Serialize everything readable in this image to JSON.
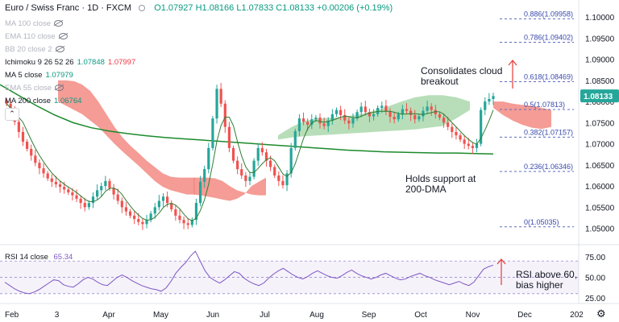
{
  "header": {
    "title": "Euro / Swiss Franc · 1D · FXCM",
    "ohlc": "O1.07927 H1.08166 L1.07833 C1.08133 +0.00206 (+0.19%)"
  },
  "indicators": [
    {
      "label": "MA 100 close",
      "value": "",
      "value2": "",
      "hidden": true
    },
    {
      "label": "EMA 110 close",
      "value": "",
      "value2": "",
      "hidden": true
    },
    {
      "label": "BB 20 close 2",
      "value": "",
      "value2": "",
      "hidden": true
    },
    {
      "label": "Ichimoku 9 26 52 26",
      "value": "1.07848",
      "value2": "1.07997",
      "hidden": false
    },
    {
      "label": "MA 5 close",
      "value": "1.07979",
      "value2": "",
      "hidden": false
    },
    {
      "label": "EMA 55 close",
      "value": "",
      "value2": "",
      "hidden": true
    },
    {
      "label": "MA 200 close",
      "value": "1.06764",
      "value2": "",
      "hidden": false
    }
  ],
  "collapse_icon": "chevron-up-icon",
  "annotations": {
    "cloud": [
      "Consolidates cloud",
      "breakout"
    ],
    "support": [
      "Holds support at",
      "200-DMA"
    ],
    "rsi": [
      "RSI above 60,",
      "bias higher"
    ]
  },
  "rsi": {
    "label": "RSI 14 close",
    "value": "65.34"
  },
  "colors": {
    "up": "#26a69a",
    "down": "#ef5350",
    "cloud_bear": "#f28b82",
    "cloud_bull": "#a5d6a7",
    "ma200": "#1b8a2b",
    "ma5": "#2e7d32",
    "rsi": "#7e57c2",
    "arrow": "#e53935"
  },
  "chart_data": {
    "type": "candlestick",
    "price_axis": {
      "ticks": [
        "1.10000",
        "1.09500",
        "1.09000",
        "1.08500",
        "1.08000",
        "1.07500",
        "1.07000",
        "1.06500",
        "1.06000",
        "1.05500",
        "1.05000"
      ],
      "range": [
        1.0465,
        1.1025
      ]
    },
    "last_price": "1.08133",
    "time_axis": [
      "Feb",
      "3",
      "Apr",
      "May",
      "Jun",
      "Jul",
      "Aug",
      "Sep",
      "Oct",
      "Nov",
      "Dec",
      "202"
    ],
    "fibonacci": [
      {
        "label": "0.886(1.09958)",
        "price": 1.09958
      },
      {
        "label": "0.786(1.09402)",
        "price": 1.09402
      },
      {
        "label": "0.618(1.08469)",
        "price": 1.08469
      },
      {
        "label": "0.5(1.07813)",
        "price": 1.07813
      },
      {
        "label": "0.382(1.07157)",
        "price": 1.07157
      },
      {
        "label": "0.236(1.06346)",
        "price": 1.06346
      },
      {
        "label": "0(1.05035)",
        "price": 1.05035
      }
    ],
    "close_series": [
      1.0795,
      1.0775,
      1.0752,
      1.0728,
      1.0705,
      1.0688,
      1.0672,
      1.0655,
      1.0642,
      1.063,
      1.0618,
      1.061,
      1.0604,
      1.0598,
      1.0592,
      1.0585,
      1.0578,
      1.057,
      1.056,
      1.055,
      1.056,
      1.0575,
      1.059,
      1.06,
      1.0612,
      1.0595,
      1.058,
      1.0565,
      1.055,
      1.054,
      1.053,
      1.0522,
      1.0515,
      1.051,
      1.052,
      1.0535,
      1.055,
      1.0565,
      1.0575,
      1.056,
      1.0545,
      1.053,
      1.052,
      1.0512,
      1.0508,
      1.052,
      1.056,
      1.061,
      1.064,
      1.069,
      1.076,
      1.083,
      1.0795,
      1.074,
      1.069,
      1.066,
      1.064,
      1.0625,
      1.0612,
      1.0622,
      1.066,
      1.069,
      1.068,
      1.066,
      1.0645,
      1.0625,
      1.0612,
      1.0602,
      1.063,
      1.069,
      1.073,
      1.076,
      1.0752,
      1.0745,
      1.0758,
      1.0762,
      1.0748,
      1.0742,
      1.0755,
      1.077,
      1.078,
      1.0768,
      1.0755,
      1.0748,
      1.076,
      1.0775,
      1.0788,
      1.0775,
      1.0765,
      1.077,
      1.0785,
      1.079,
      1.0776,
      1.0764,
      1.0758,
      1.077,
      1.0782,
      1.0778,
      1.0768,
      1.0758,
      1.0765,
      1.0778,
      1.0788,
      1.078,
      1.077,
      1.0762,
      1.075,
      1.074,
      1.0728,
      1.072,
      1.071,
      1.07,
      1.0695,
      1.069,
      1.07,
      1.078,
      1.08,
      1.0806,
      1.0813
    ],
    "ma200_series": [
      1.084,
      1.0815,
      1.079,
      1.0768,
      1.075,
      1.0738,
      1.073,
      1.0724,
      1.0719,
      1.0715,
      1.0712,
      1.0709,
      1.0706,
      1.0703,
      1.07,
      1.0697,
      1.0694,
      1.0691,
      1.0688,
      1.0685,
      1.0683,
      1.0681,
      1.068,
      1.0679,
      1.0678,
      1.0678,
      1.0677,
      1.0676
    ],
    "rsi_axis": {
      "ticks": [
        "75.00",
        "50.00",
        "25.00"
      ],
      "range": [
        18,
        88
      ]
    },
    "rsi_series": [
      44,
      40,
      36,
      33,
      31,
      30,
      32,
      35,
      39,
      43,
      47,
      46,
      41,
      39,
      38,
      42,
      47,
      50,
      48,
      44,
      41,
      40,
      45,
      50,
      53,
      50,
      46,
      43,
      40,
      38,
      36,
      35,
      33,
      37,
      45,
      55,
      62,
      68,
      76,
      82,
      70,
      58,
      50,
      46,
      43,
      47,
      52,
      57,
      55,
      49,
      45,
      42,
      40,
      43,
      49,
      54,
      58,
      61,
      57,
      53,
      50,
      48,
      51,
      55,
      58,
      55,
      52,
      50,
      49,
      52,
      56,
      59,
      55,
      52,
      50,
      48,
      50,
      53,
      55,
      52,
      49,
      47,
      48,
      51,
      53,
      55,
      52,
      50,
      47,
      45,
      43,
      41,
      43,
      45,
      42,
      40,
      44,
      52,
      60,
      63,
      65
    ]
  }
}
